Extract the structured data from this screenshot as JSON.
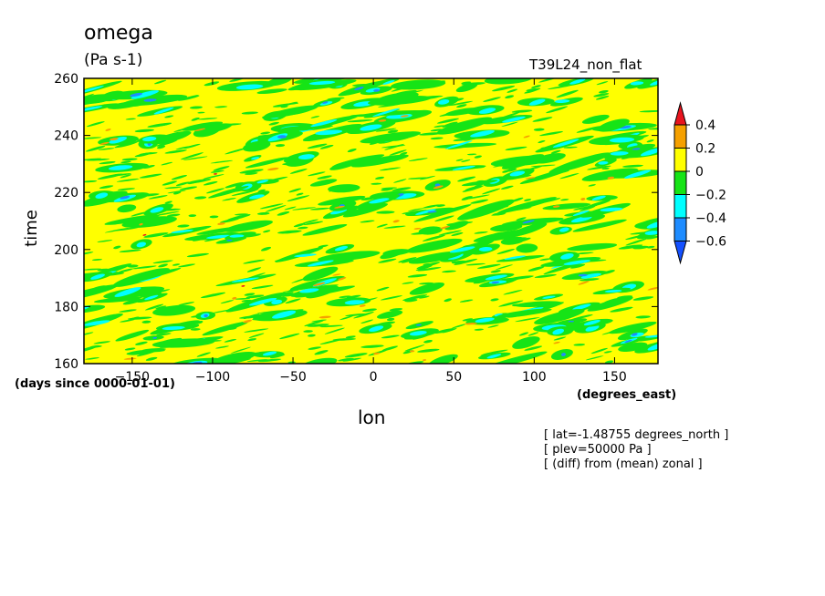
{
  "chart_data": {
    "type": "heatmap",
    "title": "omega",
    "units": "(Pa s-1)",
    "experiment": "T39L24_non_flat",
    "xlabel": "lon",
    "xunits": "(degrees_east)",
    "ylabel": "time",
    "yunits": "(days since 0000-01-01)",
    "xlim": [
      -180,
      177
    ],
    "ylim": [
      160,
      260
    ],
    "xticks": [
      -150,
      -100,
      -50,
      0,
      50,
      100,
      150
    ],
    "yticks": [
      160,
      180,
      200,
      220,
      240,
      260
    ],
    "xtick_labels": [
      "−150",
      "−100",
      "−50",
      "0",
      "50",
      "100",
      "150"
    ],
    "ytick_labels": [
      "160",
      "180",
      "200",
      "220",
      "240",
      "260"
    ],
    "colorbar": {
      "levels": [
        0.4,
        0.2,
        0,
        -0.2,
        -0.4,
        -0.6
      ],
      "level_labels": [
        "0.4",
        "0.2",
        "0",
        "−0.2",
        "−0.4",
        "−0.6"
      ],
      "colors": [
        "#e8141e",
        "#f5a000",
        "#ffff00",
        "#16e416",
        "#00ffff",
        "#1e8cff",
        "#1450ff"
      ]
    },
    "background_value_color": "#ffff00",
    "notes": [
      "[ lat=-1.48755 degrees_north ]",
      "[ plev=50000 Pa ]",
      "[ (diff) from (mean) zonal ]"
    ]
  }
}
